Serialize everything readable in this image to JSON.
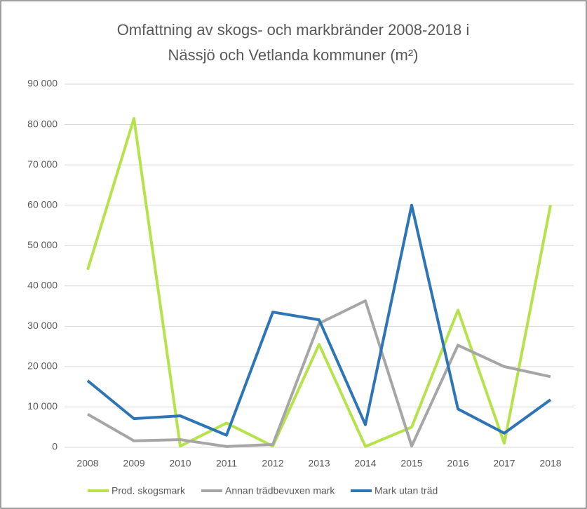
{
  "chart_data": {
    "type": "line",
    "title": [
      "Omfattning av skogs- och markbränder 2008-2018 i",
      "Nässjö och Vetlanda kommuner (m²)"
    ],
    "categories": [
      "2008",
      "2009",
      "2010",
      "2011",
      "2012",
      "2013",
      "2014",
      "2015",
      "2016",
      "2017",
      "2018"
    ],
    "series": [
      {
        "name": "Prod. skogsmark",
        "color": "#b6e34c",
        "values": [
          44000,
          81500,
          300,
          6000,
          300,
          25500,
          200,
          5000,
          34000,
          1000,
          60000
        ]
      },
      {
        "name": "Annan trädbevuxen mark",
        "color": "#a6a6a6",
        "values": [
          8200,
          1600,
          1900,
          200,
          700,
          30700,
          36300,
          300,
          25300,
          20000,
          17500
        ]
      },
      {
        "name": "Mark utan träd",
        "color": "#2e75b6",
        "values": [
          16500,
          7100,
          7800,
          3000,
          33500,
          31600,
          5600,
          60000,
          9500,
          3500,
          11800
        ]
      }
    ],
    "ylim": [
      0,
      90000
    ],
    "yticks": [
      0,
      {
        "value": 10000,
        "label": "10 000"
      },
      {
        "value": 20000,
        "label": "20 000"
      },
      {
        "value": 30000,
        "label": "30 000"
      },
      {
        "value": 40000,
        "label": "40 000"
      },
      {
        "value": 50000,
        "label": "50 000"
      },
      {
        "value": 60000,
        "label": "60 000"
      },
      {
        "value": 70000,
        "label": "70 000"
      },
      {
        "value": 80000,
        "label": "80 000"
      },
      {
        "value": 90000,
        "label": "90 000"
      }
    ],
    "grid": true,
    "legend": "bottom"
  }
}
